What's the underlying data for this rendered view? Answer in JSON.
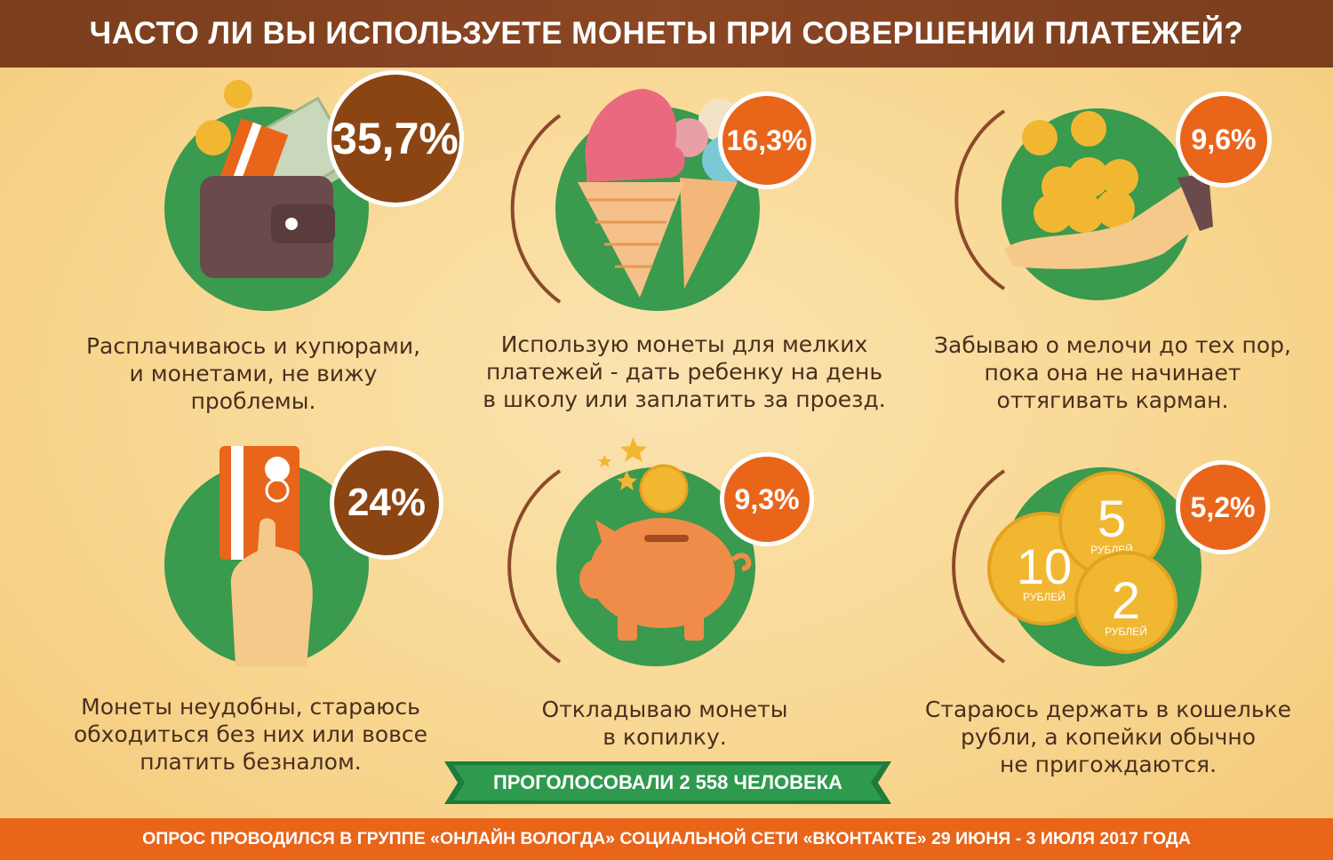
{
  "header": {
    "title": "ЧАСТО ЛИ ВЫ ИСПОЛЬЗУЕТЕ МОНЕТЫ ПРИ СОВЕРШЕНИИ ПЛАТЕЖЕЙ?"
  },
  "colors": {
    "green": "#3a9a4e",
    "brown": "#8b4513",
    "orange": "#e8651a",
    "footer": "#e8651a",
    "header": "#7a3e1e"
  },
  "items": [
    {
      "percent": "35,7%",
      "icon": "wallet-icon",
      "caption": [
        "Расплачиваюсь и купюрами,",
        "и монетами, не вижу",
        "проблемы."
      ]
    },
    {
      "percent": "16,3%",
      "icon": "ice-cream-icon",
      "caption": [
        "Использую монеты для мелких",
        "платежей - дать ребенку на день",
        "в школу или заплатить за проезд."
      ]
    },
    {
      "percent": "9,6%",
      "icon": "hand-coins-icon",
      "caption": [
        "Забываю о мелочи до тех пор,",
        "пока она не начинает",
        "оттягивать карман."
      ]
    },
    {
      "percent": "24%",
      "icon": "card-hand-icon",
      "caption": [
        "Монеты неудобны, стараюсь",
        "обходиться без них или вовсе",
        "платить безналом."
      ]
    },
    {
      "percent": "9,3%",
      "icon": "piggy-bank-icon",
      "caption": [
        "Откладываю монеты",
        "в копилку."
      ]
    },
    {
      "percent": "5,2%",
      "icon": "ruble-coins-icon",
      "caption": [
        "Стараюсь держать в кошельке",
        "рубли, а копейки обычно",
        "не пригождаются."
      ]
    }
  ],
  "coins": {
    "c10": "10",
    "c5": "5",
    "c2": "2",
    "unit": "РУБЛЕЙ"
  },
  "voted": "ПРОГОЛОСОВАЛИ 2 558 ЧЕЛОВЕКА",
  "footer": "ОПРОС ПРОВОДИЛСЯ В ГРУППЕ «ОНЛАЙН ВОЛОГДА» СОЦИАЛЬНОЙ СЕТИ «ВКОНТАКТЕ»  29 ИЮНЯ - 3 ИЮЛЯ 2017 ГОДА"
}
